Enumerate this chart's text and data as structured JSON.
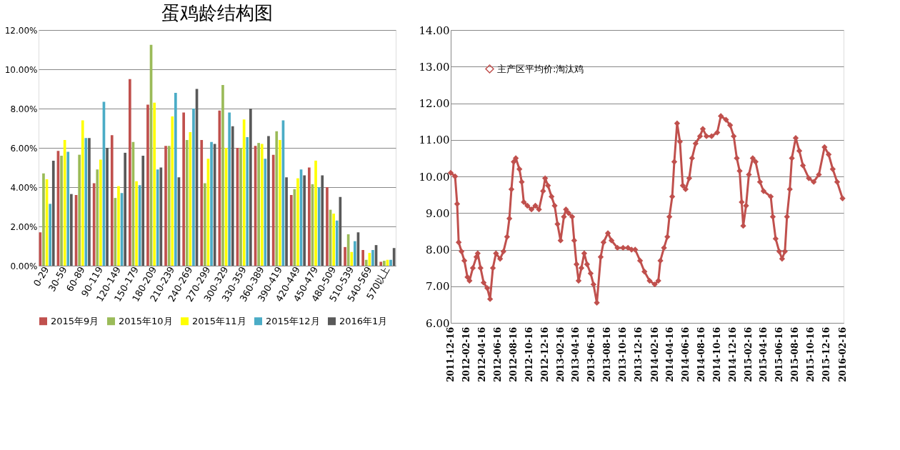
{
  "chart_data": [
    {
      "type": "bar",
      "title": "蛋鸡龄结构图",
      "categories": [
        "0-29",
        "30-59",
        "60-89",
        "90-119",
        "120-149",
        "150-179",
        "180-209",
        "210-239",
        "240-269",
        "270-299",
        "300-329",
        "330-359",
        "360-389",
        "390-419",
        "420-449",
        "450-479",
        "480-509",
        "510-539",
        "540-569",
        "570以上"
      ],
      "series": [
        {
          "name": "2015年9月",
          "color": "#c0504d",
          "values": [
            1.7,
            5.85,
            3.6,
            4.2,
            6.65,
            9.5,
            8.2,
            6.1,
            7.8,
            6.4,
            7.9,
            6.0,
            6.1,
            5.65,
            3.6,
            5.0,
            4.0,
            0.95,
            0.8,
            0.2
          ]
        },
        {
          "name": "2015年10月",
          "color": "#9bbb59",
          "values": [
            4.7,
            5.6,
            5.65,
            4.9,
            3.45,
            6.3,
            11.25,
            6.1,
            6.4,
            4.2,
            9.2,
            6.0,
            6.25,
            6.85,
            3.9,
            4.15,
            2.85,
            1.6,
            0.3,
            0.25
          ]
        },
        {
          "name": "2015年11月",
          "color": "#ffff00",
          "values": [
            4.4,
            6.4,
            7.4,
            5.4,
            4.05,
            4.3,
            8.3,
            7.6,
            6.8,
            5.45,
            6.0,
            7.45,
            6.2,
            6.4,
            4.45,
            5.35,
            2.65,
            0.7,
            0.65,
            0.3
          ]
        },
        {
          "name": "2015年12月",
          "color": "#4bacc6",
          "values": [
            3.15,
            5.8,
            6.5,
            8.35,
            3.7,
            4.1,
            4.9,
            8.8,
            8.0,
            6.3,
            7.8,
            6.55,
            5.45,
            7.4,
            4.9,
            4.0,
            2.3,
            1.25,
            0.8,
            0.3
          ]
        },
        {
          "name": "2016年1月",
          "color": "#595959",
          "values": [
            5.35,
            3.65,
            6.5,
            6.0,
            5.75,
            5.6,
            5.0,
            4.5,
            9.0,
            6.2,
            7.1,
            8.0,
            6.6,
            4.5,
            4.6,
            4.6,
            3.5,
            1.7,
            1.05,
            0.9
          ]
        }
      ],
      "ylim": [
        0,
        12
      ],
      "yticks": [
        {
          "value": 0,
          "label": "0.00%"
        },
        {
          "value": 2,
          "label": "2.00%"
        },
        {
          "value": 4,
          "label": "4.00%"
        },
        {
          "value": 6,
          "label": "6.00%"
        },
        {
          "value": 8,
          "label": "8.00%"
        },
        {
          "value": 10,
          "label": "10.00%"
        },
        {
          "value": 12,
          "label": "12.00%"
        }
      ],
      "grid": "y",
      "legend": "bottom"
    },
    {
      "type": "line",
      "x": [
        "2011-12-16",
        "2012-01-02",
        "2012-01-10",
        "2012-01-16",
        "2012-01-27",
        "2012-02-07",
        "2012-02-19",
        "2012-02-27",
        "2012-03-11",
        "2012-03-25",
        "2012-03-30",
        "2012-04-10",
        "2012-04-22",
        "2012-05-06",
        "2012-05-17",
        "2012-05-28",
        "2012-06-09",
        "2012-06-25",
        "2012-07-08",
        "2012-07-22",
        "2012-07-31",
        "2012-08-08",
        "2012-08-17",
        "2012-08-25",
        "2012-09-08",
        "2012-09-17",
        "2012-09-25",
        "2012-10-09",
        "2012-10-25",
        "2012-11-09",
        "2012-11-23",
        "2012-12-09",
        "2012-12-17",
        "2012-12-28",
        "2013-01-11",
        "2013-01-23",
        "2013-02-03",
        "2013-02-15",
        "2013-02-28",
        "2013-03-08",
        "2013-03-18",
        "2013-04-01",
        "2013-04-09",
        "2013-04-18",
        "2013-04-26",
        "2013-05-07",
        "2013-05-18",
        "2013-05-29",
        "2013-06-12",
        "2013-06-23",
        "2013-07-06",
        "2013-07-21",
        "2013-08-01",
        "2013-08-18",
        "2013-09-01",
        "2013-09-24",
        "2013-10-16",
        "2013-11-04",
        "2013-11-18",
        "2013-12-02",
        "2013-12-21",
        "2014-01-07",
        "2014-01-27",
        "2014-02-16",
        "2014-03-02",
        "2014-03-10",
        "2014-03-24",
        "2014-04-06",
        "2014-04-14",
        "2014-04-25",
        "2014-05-03",
        "2014-05-14",
        "2014-05-25",
        "2014-06-05",
        "2014-06-16",
        "2014-06-30",
        "2014-07-11",
        "2014-07-25",
        "2014-08-11",
        "2014-08-22",
        "2014-09-05",
        "2014-09-25",
        "2014-10-17",
        "2014-10-31",
        "2014-11-20",
        "2014-12-06",
        "2014-12-20",
        "2015-01-01",
        "2015-01-12",
        "2015-01-20",
        "2015-01-26",
        "2015-02-06",
        "2015-02-17",
        "2015-03-04",
        "2015-03-15",
        "2015-04-01",
        "2015-04-15",
        "2015-05-13",
        "2015-05-21",
        "2015-06-01",
        "2015-06-15",
        "2015-06-26",
        "2015-07-07",
        "2015-07-15",
        "2015-07-26",
        "2015-08-03",
        "2015-08-18",
        "2015-09-01",
        "2015-09-15",
        "2015-10-08",
        "2015-10-27",
        "2015-11-16",
        "2015-12-08",
        "2015-12-24",
        "2016-01-09",
        "2016-01-26",
        "2016-02-16"
      ],
      "series": [
        {
          "name": "主产区平均价:淘汰鸡",
          "color": "#c0504d",
          "values": [
            10.1,
            10.0,
            9.25,
            8.2,
            7.95,
            7.7,
            7.25,
            7.15,
            7.5,
            7.8,
            7.9,
            7.5,
            7.1,
            6.95,
            6.65,
            7.5,
            7.9,
            7.75,
            7.95,
            8.35,
            8.85,
            9.65,
            10.4,
            10.5,
            10.2,
            9.85,
            9.3,
            9.2,
            9.1,
            9.2,
            9.1,
            9.6,
            9.95,
            9.75,
            9.45,
            9.2,
            8.7,
            8.25,
            8.9,
            9.1,
            9.0,
            8.9,
            8.25,
            7.6,
            7.15,
            7.5,
            7.9,
            7.6,
            7.35,
            7.05,
            6.55,
            7.8,
            8.2,
            8.45,
            8.25,
            8.05,
            8.05,
            8.05,
            8.0,
            8.0,
            7.7,
            7.4,
            7.15,
            7.05,
            7.15,
            7.7,
            8.05,
            8.35,
            8.9,
            9.45,
            10.4,
            11.45,
            10.95,
            9.75,
            9.65,
            9.95,
            10.5,
            10.9,
            11.1,
            11.3,
            11.1,
            11.1,
            11.2,
            11.65,
            11.55,
            11.4,
            11.1,
            10.5,
            10.15,
            9.3,
            8.65,
            9.2,
            10.05,
            10.5,
            10.4,
            9.85,
            9.6,
            9.45,
            8.9,
            8.3,
            7.95,
            7.75,
            7.95,
            8.9,
            9.65,
            10.5,
            11.05,
            10.7,
            10.3,
            9.95,
            9.85,
            10.05,
            10.8,
            10.6,
            10.2,
            9.85,
            9.4
          ]
        }
      ],
      "xlim": [
        "2011-12-16",
        "2016-02-20"
      ],
      "xticks": [
        "2011-12-16",
        "2012-02-16",
        "2012-04-16",
        "2012-06-16",
        "2012-08-16",
        "2012-10-16",
        "2012-12-16",
        "2013-02-16",
        "2013-04-16",
        "2013-06-16",
        "2013-08-16",
        "2013-10-16",
        "2013-12-16",
        "2014-02-16",
        "2014-04-16",
        "2014-06-16",
        "2014-08-16",
        "2014-10-16",
        "2014-12-16",
        "2015-02-16",
        "2015-04-16",
        "2015-06-16",
        "2015-08-16",
        "2015-10-16",
        "2015-12-16",
        "2016-02-16"
      ],
      "ylim": [
        6,
        14
      ],
      "yticks": [
        {
          "value": 6,
          "label": "6.00"
        },
        {
          "value": 7,
          "label": "7.00"
        },
        {
          "value": 8,
          "label": "8.00"
        },
        {
          "value": 9,
          "label": "9.00"
        },
        {
          "value": 10,
          "label": "10.00"
        },
        {
          "value": 11,
          "label": "11.00"
        },
        {
          "value": 12,
          "label": "12.00"
        },
        {
          "value": 13,
          "label": "13.00"
        },
        {
          "value": 14,
          "label": "14.00"
        }
      ],
      "grid": "y",
      "legend": "top left",
      "marker": "diamond",
      "line_style": "solid"
    }
  ]
}
